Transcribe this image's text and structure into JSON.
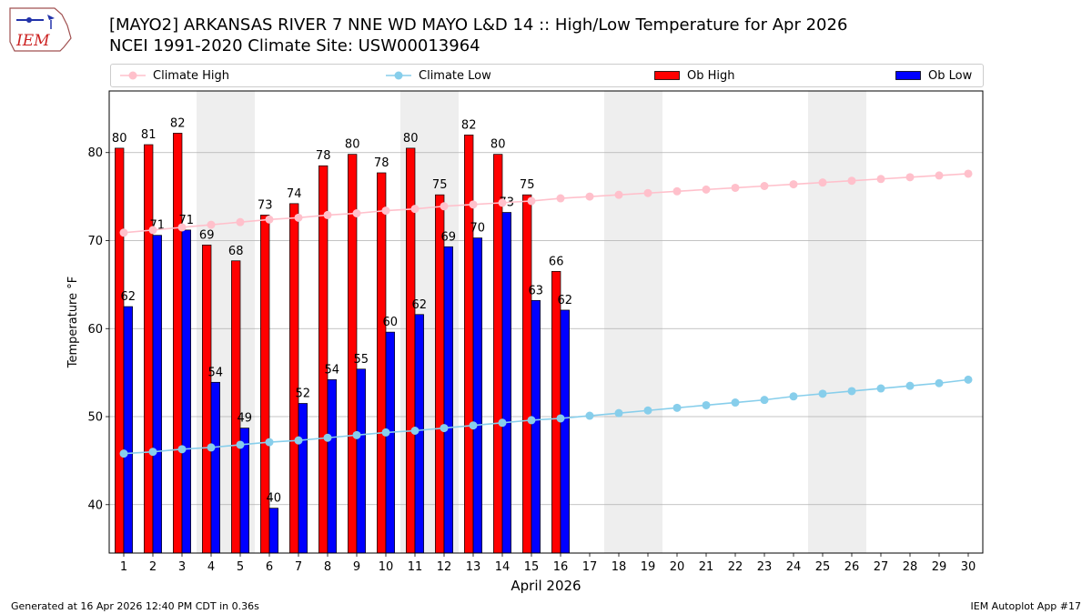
{
  "header": {
    "title_line1": "[MAYO2] ARKANSAS RIVER 7 NNE WD MAYO L&D 14 :: High/Low Temperature for Apr 2026",
    "title_line2": "NCEI 1991-2020 Climate Site: USW00013964",
    "logo_text": "IEM"
  },
  "legend": {
    "climate_high": "Climate High",
    "climate_low": "Climate Low",
    "ob_high": "Ob High",
    "ob_low": "Ob Low"
  },
  "footer": {
    "generated": "Generated at 16 Apr 2026 12:40 PM CDT in 0.36s",
    "app": "IEM Autoplot App #17"
  },
  "colors": {
    "ob_high": "#ff0000",
    "ob_low": "#0000ff",
    "climate_high": "#ffc0cb",
    "climate_low": "#87ceeb",
    "weekend_band": "#eeeeee",
    "grid": "#b0b0b0"
  },
  "chart_data": {
    "type": "bar",
    "title": "[MAYO2] ARKANSAS RIVER 7 NNE WD MAYO L&D 14 :: High/Low Temperature for Apr 2026",
    "xlabel": "April 2026",
    "ylabel": "Temperature °F",
    "xlim": [
      0.5,
      30.5
    ],
    "ylim": [
      34.5,
      87
    ],
    "yticks": [
      40,
      50,
      60,
      70,
      80
    ],
    "grid": "horizontal",
    "days": [
      1,
      2,
      3,
      4,
      5,
      6,
      7,
      8,
      9,
      10,
      11,
      12,
      13,
      14,
      15,
      16,
      17,
      18,
      19,
      20,
      21,
      22,
      23,
      24,
      25,
      26,
      27,
      28,
      29,
      30
    ],
    "shaded_days": [
      4,
      5,
      11,
      12,
      18,
      19,
      25,
      26
    ],
    "series": [
      {
        "name": "Ob High",
        "kind": "bar",
        "values": [
          80.5,
          80.9,
          82.2,
          69.5,
          67.7,
          72.9,
          74.2,
          78.5,
          79.8,
          77.7,
          80.5,
          75.2,
          82.0,
          79.8,
          75.2,
          66.5
        ],
        "labels": [
          "80",
          "81",
          "82",
          "69",
          "68",
          "73",
          "74",
          "78",
          "80",
          "78",
          "80",
          "75",
          "82",
          "80",
          "75",
          "66"
        ]
      },
      {
        "name": "Ob Low",
        "kind": "bar",
        "values": [
          62.5,
          70.6,
          71.2,
          53.9,
          48.7,
          39.6,
          51.5,
          54.2,
          55.4,
          59.6,
          61.6,
          69.3,
          70.3,
          73.2,
          63.2,
          62.1
        ],
        "labels": [
          "62",
          "71",
          "71",
          "54",
          "49",
          "40",
          "52",
          "54",
          "55",
          "60",
          "62",
          "69",
          "70",
          "73",
          "63",
          "62"
        ]
      },
      {
        "name": "Climate High",
        "kind": "line",
        "values": [
          70.9,
          71.2,
          71.5,
          71.8,
          72.1,
          72.4,
          72.6,
          72.9,
          73.1,
          73.4,
          73.6,
          73.9,
          74.1,
          74.3,
          74.5,
          74.8,
          75.0,
          75.2,
          75.4,
          75.6,
          75.8,
          76.0,
          76.2,
          76.4,
          76.6,
          76.8,
          77.0,
          77.2,
          77.4,
          77.6
        ]
      },
      {
        "name": "Climate Low",
        "kind": "line",
        "values": [
          45.8,
          46.0,
          46.3,
          46.5,
          46.8,
          47.1,
          47.3,
          47.6,
          47.9,
          48.2,
          48.4,
          48.7,
          49.0,
          49.3,
          49.6,
          49.8,
          50.1,
          50.4,
          50.7,
          51.0,
          51.3,
          51.6,
          51.9,
          52.3,
          52.6,
          52.9,
          53.2,
          53.5,
          53.8,
          54.2
        ]
      }
    ]
  }
}
